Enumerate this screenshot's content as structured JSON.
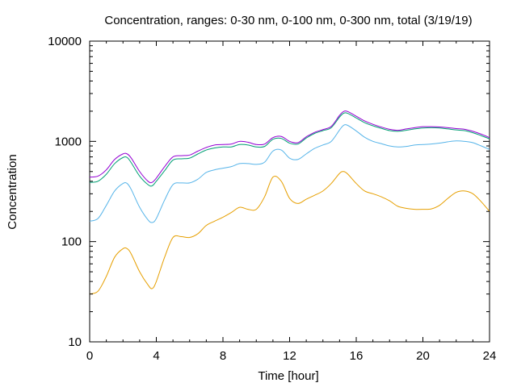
{
  "chart_data": {
    "type": "line",
    "title": "Concentration, ranges: 0-30 nm, 0-100 nm, 0-300 nm, total (3/19/19)",
    "xlabel": "Time [hour]",
    "ylabel": "Concentration",
    "xlim": [
      0,
      24
    ],
    "ylim": [
      10,
      10000
    ],
    "yscale": "log",
    "grid": false,
    "legend": "none",
    "x_ticks": [
      "0",
      "4",
      "8",
      "12",
      "16",
      "20",
      "24"
    ],
    "y_ticks": [
      "10",
      "100",
      "1000",
      "10000"
    ],
    "x": [
      0,
      0.5,
      1,
      1.5,
      2,
      2.25,
      2.5,
      3,
      3.5,
      3.75,
      4,
      4.5,
      5,
      5.5,
      6,
      6.5,
      7,
      7.5,
      8,
      8.5,
      9,
      9.5,
      10,
      10.5,
      11,
      11.5,
      12,
      12.5,
      13,
      13.5,
      14,
      14.5,
      15,
      15.25,
      15.5,
      16,
      16.5,
      17,
      17.5,
      18,
      18.5,
      19,
      19.5,
      20,
      20.5,
      21,
      21.5,
      22,
      22.5,
      23,
      23.5,
      24
    ],
    "series": [
      {
        "color": "#e69f00",
        "values": [
          30,
          32,
          45,
          70,
          85,
          85,
          75,
          50,
          37,
          34,
          40,
          70,
          110,
          112,
          110,
          120,
          145,
          160,
          175,
          195,
          220,
          210,
          210,
          280,
          440,
          400,
          270,
          240,
          265,
          290,
          320,
          380,
          480,
          500,
          470,
          380,
          320,
          300,
          280,
          255,
          225,
          215,
          210,
          210,
          212,
          230,
          270,
          310,
          320,
          300,
          250,
          200
        ]
      },
      {
        "color": "#56b4e9",
        "values": [
          160,
          170,
          230,
          320,
          380,
          380,
          330,
          220,
          165,
          155,
          170,
          260,
          370,
          385,
          385,
          420,
          490,
          520,
          540,
          560,
          600,
          600,
          590,
          620,
          800,
          820,
          680,
          660,
          750,
          850,
          920,
          1000,
          1300,
          1450,
          1440,
          1270,
          1100,
          1000,
          950,
          900,
          880,
          890,
          920,
          930,
          940,
          960,
          990,
          1010,
          1000,
          970,
          900,
          830
        ]
      },
      {
        "color": "#009e73",
        "values": [
          390,
          400,
          470,
          600,
          690,
          690,
          610,
          450,
          370,
          360,
          400,
          510,
          650,
          670,
          680,
          750,
          820,
          860,
          880,
          880,
          930,
          920,
          880,
          890,
          1050,
          1070,
          960,
          940,
          1080,
          1200,
          1280,
          1370,
          1750,
          1910,
          1900,
          1710,
          1540,
          1430,
          1350,
          1280,
          1260,
          1290,
          1330,
          1360,
          1370,
          1360,
          1330,
          1300,
          1280,
          1220,
          1140,
          1060
        ]
      },
      {
        "color": "#9400d3",
        "values": [
          440,
          450,
          520,
          660,
          750,
          750,
          680,
          500,
          400,
          390,
          430,
          560,
          700,
          720,
          730,
          800,
          870,
          920,
          930,
          940,
          1000,
          980,
          930,
          940,
          1090,
          1120,
          1000,
          970,
          1110,
          1230,
          1310,
          1410,
          1820,
          1990,
          1980,
          1780,
          1600,
          1480,
          1390,
          1320,
          1290,
          1330,
          1370,
          1400,
          1400,
          1390,
          1370,
          1340,
          1320,
          1260,
          1180,
          1090
        ]
      }
    ]
  }
}
